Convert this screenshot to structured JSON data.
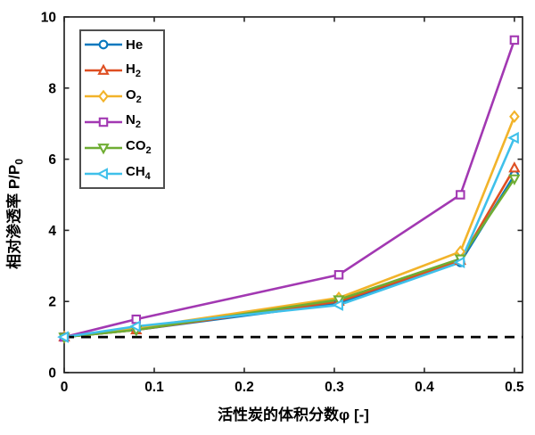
{
  "figure": {
    "background": "#ffffff",
    "axis_color": "#262626",
    "xlabel": "活性炭的体积分数φ [-]",
    "ylabel_main": "相对渗透率 P/P",
    "ylabel_sub": "0"
  },
  "chart_data": {
    "type": "line",
    "title": "",
    "xlabel": "活性炭的体积分数φ [-]",
    "ylabel": "相对渗透率 P/P0",
    "x": [
      0,
      0.08,
      0.305,
      0.44,
      0.5
    ],
    "series": [
      {
        "name": "He",
        "label_base": "He",
        "label_sub": "",
        "color": "#0878BE",
        "marker": "circle",
        "values": [
          1.0,
          1.2,
          1.95,
          3.1,
          5.55
        ]
      },
      {
        "name": "H2",
        "label_base": "H",
        "label_sub": "2",
        "color": "#DE4F22",
        "marker": "triangle-up",
        "values": [
          1.0,
          1.2,
          2.0,
          3.15,
          5.75
        ]
      },
      {
        "name": "O2",
        "label_base": "O",
        "label_sub": "2",
        "color": "#F2B32A",
        "marker": "diamond",
        "values": [
          1.0,
          1.25,
          2.1,
          3.4,
          7.2
        ]
      },
      {
        "name": "N2",
        "label_base": "N",
        "label_sub": "2",
        "color": "#A238B2",
        "marker": "square",
        "values": [
          1.0,
          1.5,
          2.75,
          5.0,
          9.35
        ]
      },
      {
        "name": "CO2",
        "label_base": "CO",
        "label_sub": "2",
        "color": "#6FAD33",
        "marker": "triangle-down",
        "values": [
          1.0,
          1.2,
          2.05,
          3.2,
          5.45
        ]
      },
      {
        "name": "CH4",
        "label_base": "CH",
        "label_sub": "4",
        "color": "#3FC0EA",
        "marker": "triangle-left",
        "values": [
          1.0,
          1.3,
          1.9,
          3.1,
          6.6
        ]
      }
    ],
    "reference_line": {
      "y": 1.0,
      "style": "dashed",
      "color": "#000000"
    },
    "x_ticks": [
      {
        "v": 0,
        "label": "0"
      },
      {
        "v": 0.1,
        "label": "0.1"
      },
      {
        "v": 0.2,
        "label": "0.2"
      },
      {
        "v": 0.3,
        "label": "0.3"
      },
      {
        "v": 0.4,
        "label": "0.4"
      },
      {
        "v": 0.5,
        "label": "0.5"
      }
    ],
    "y_ticks": [
      {
        "v": 0,
        "label": "0"
      },
      {
        "v": 2,
        "label": "2"
      },
      {
        "v": 4,
        "label": "4"
      },
      {
        "v": 6,
        "label": "6"
      },
      {
        "v": 8,
        "label": "8"
      },
      {
        "v": 10,
        "label": "10"
      }
    ],
    "xlim": [
      0,
      0.509
    ],
    "ylim": [
      0,
      10
    ],
    "grid": false,
    "legend_position": "top-left"
  }
}
